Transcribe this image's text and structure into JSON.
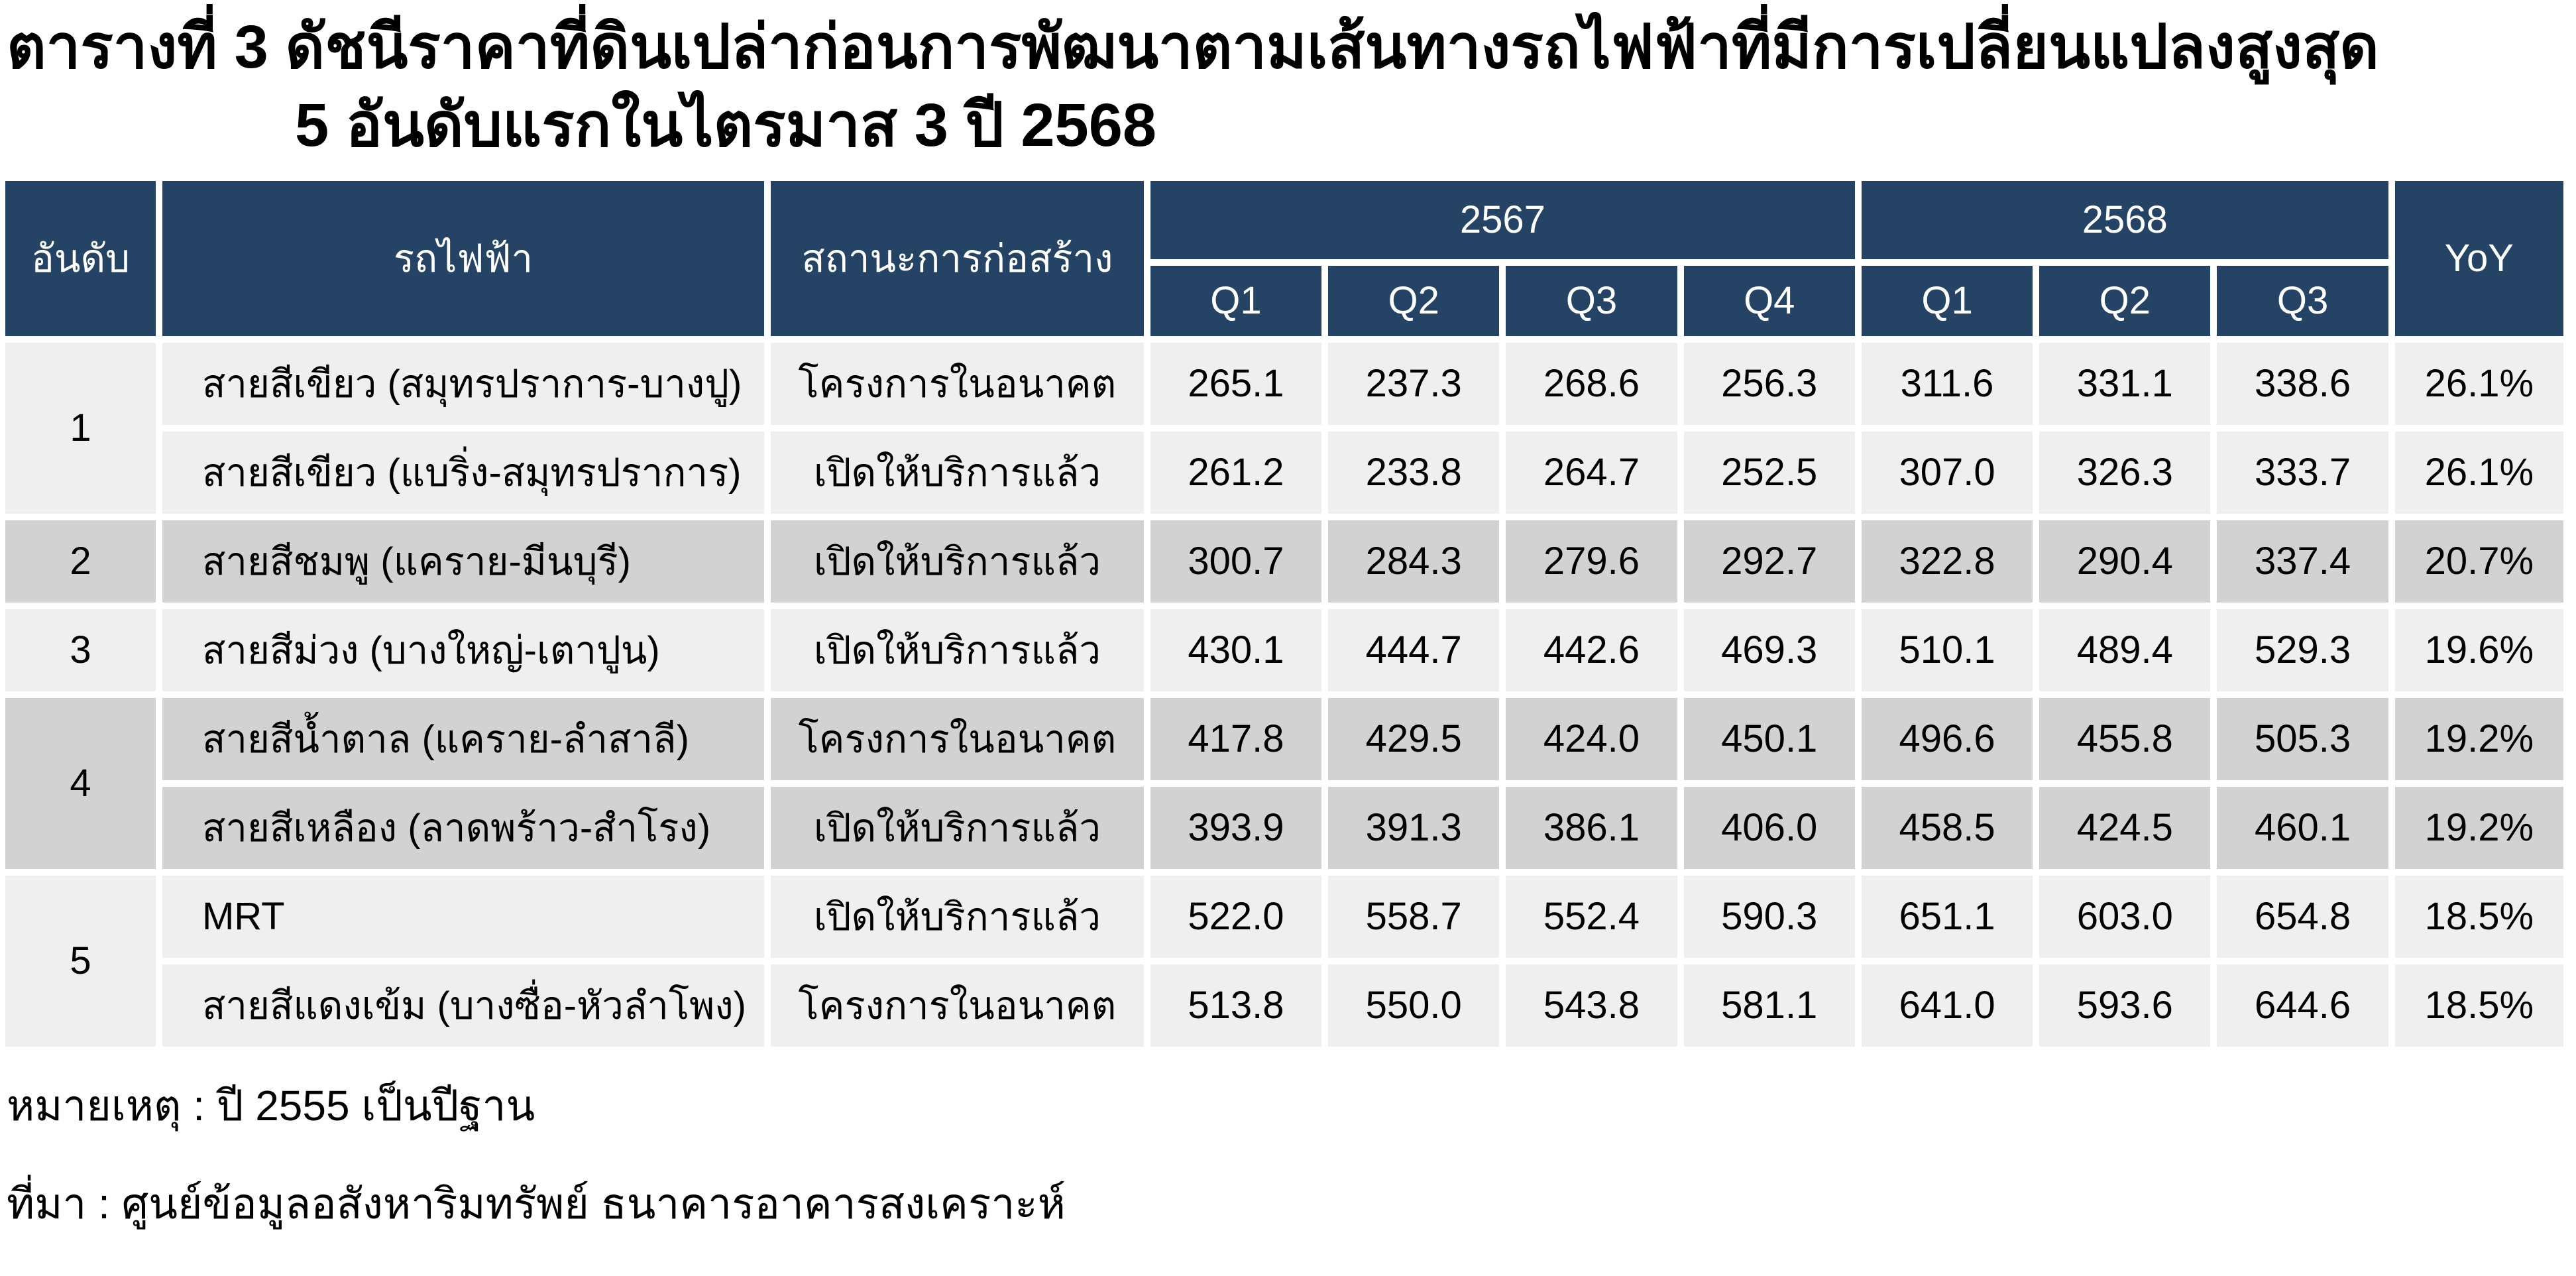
{
  "title": {
    "line1": "ตารางที่ 3 ดัชนีราคาที่ดินเปล่าก่อนการพัฒนาตามเส้นทางรถไฟฟ้าที่มีการเปลี่ยนแปลงสูงสุด",
    "line2": "5 อันดับแรกในไตรมาส 3 ปี 2568"
  },
  "table": {
    "columns": {
      "rank": "อันดับ",
      "line": "รถไฟฟ้า",
      "status": "สถานะการก่อสร้าง",
      "yoy": "YoY"
    },
    "year_groups": [
      {
        "label": "2567",
        "quarters": [
          "Q1",
          "Q2",
          "Q3",
          "Q4"
        ]
      },
      {
        "label": "2568",
        "quarters": [
          "Q1",
          "Q2",
          "Q3"
        ]
      }
    ],
    "rows": [
      {
        "rank": "1",
        "rank_span": 2,
        "shade": "light",
        "line": "สายสีเขียว (สมุทรปราการ-บางปู)",
        "status": "โครงการในอนาคต",
        "values": [
          "265.1",
          "237.3",
          "268.6",
          "256.3",
          "311.6",
          "331.1",
          "338.6"
        ],
        "yoy": "26.1%"
      },
      {
        "shade": "light",
        "line": "สายสีเขียว (แบริ่ง-สมุทรปราการ)",
        "status": "เปิดให้บริการแล้ว",
        "values": [
          "261.2",
          "233.8",
          "264.7",
          "252.5",
          "307.0",
          "326.3",
          "333.7"
        ],
        "yoy": "26.1%"
      },
      {
        "rank": "2",
        "rank_span": 1,
        "shade": "dark",
        "line": "สายสีชมพู (แคราย-มีนบุรี)",
        "status": "เปิดให้บริการแล้ว",
        "values": [
          "300.7",
          "284.3",
          "279.6",
          "292.7",
          "322.8",
          "290.4",
          "337.4"
        ],
        "yoy": "20.7%"
      },
      {
        "rank": "3",
        "rank_span": 1,
        "shade": "light",
        "line": "สายสีม่วง (บางใหญ่-เตาปูน)",
        "status": "เปิดให้บริการแล้ว",
        "values": [
          "430.1",
          "444.7",
          "442.6",
          "469.3",
          "510.1",
          "489.4",
          "529.3"
        ],
        "yoy": "19.6%"
      },
      {
        "rank": "4",
        "rank_span": 2,
        "shade": "dark",
        "line": "สายสีน้ำตาล (แคราย-ลำสาลี)",
        "status": "โครงการในอนาคต",
        "values": [
          "417.8",
          "429.5",
          "424.0",
          "450.1",
          "496.6",
          "455.8",
          "505.3"
        ],
        "yoy": "19.2%"
      },
      {
        "shade": "dark",
        "line": "สายสีเหลือง (ลาดพร้าว-สำโรง)",
        "status": "เปิดให้บริการแล้ว",
        "values": [
          "393.9",
          "391.3",
          "386.1",
          "406.0",
          "458.5",
          "424.5",
          "460.1"
        ],
        "yoy": "19.2%"
      },
      {
        "rank": "5",
        "rank_span": 2,
        "shade": "light",
        "line": "MRT",
        "status": "เปิดให้บริการแล้ว",
        "values": [
          "522.0",
          "558.7",
          "552.4",
          "590.3",
          "651.1",
          "603.0",
          "654.8"
        ],
        "yoy": "18.5%"
      },
      {
        "shade": "light",
        "line": "สายสีแดงเข้ม (บางซื่อ-หัวลำโพง)",
        "status": "โครงการในอนาคต",
        "values": [
          "513.8",
          "550.0",
          "543.8",
          "581.1",
          "641.0",
          "593.6",
          "644.6"
        ],
        "yoy": "18.5%"
      }
    ]
  },
  "footer": {
    "note": "หมายเหตุ : ปี 2555 เป็นปีฐาน",
    "source": "ที่มา : ศูนย์ข้อมูลอสังหาริมทรัพย์ ธนาคารอาคารสงเคราะห์"
  },
  "colors": {
    "header_bg": "#254365",
    "header_text": "#FFFFFF",
    "row_light": "#F0EFEF",
    "row_dark": "#D2D2D2",
    "gap": "#FFFFFF"
  }
}
